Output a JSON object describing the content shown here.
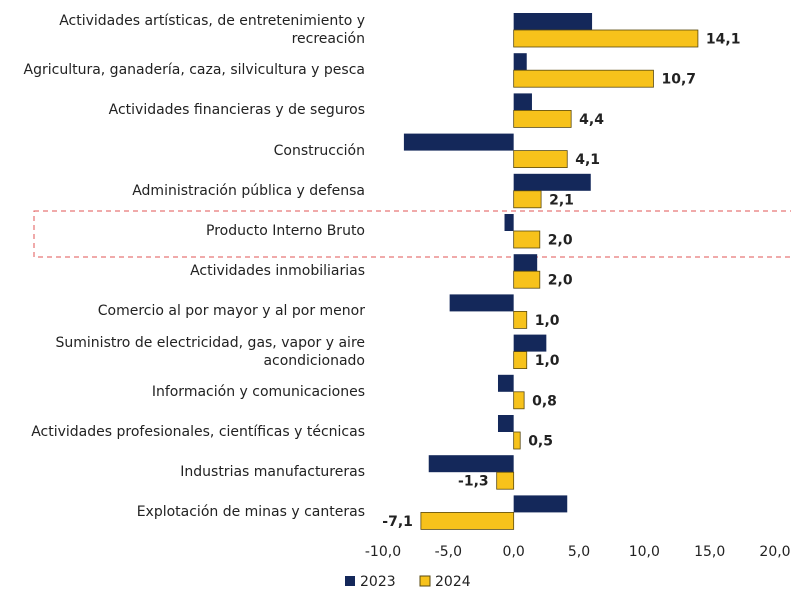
{
  "chart_data": {
    "type": "bar",
    "orientation": "horizontal",
    "categories": [
      "Actividades artísticas, de entretenimiento y recreación",
      "Agricultura, ganadería, caza, silvicultura y pesca",
      "Actividades financieras y de seguros",
      "Construcción",
      "Administración pública y defensa",
      "Producto Interno Bruto",
      "Actividades inmobiliarias",
      "Comercio al por mayor y al por menor",
      "Suministro de electricidad, gas, vapor y aire acondicionado",
      "Información y comunicaciones",
      "Actividades profesionales, científicas y técnicas",
      "Industrias manufactureras",
      "Explotación de minas y canteras"
    ],
    "series": [
      {
        "name": "2023",
        "color": "#14285a",
        "values": [
          6.0,
          1.0,
          1.4,
          -8.4,
          5.9,
          -0.7,
          1.8,
          -4.9,
          2.5,
          -1.2,
          -1.2,
          -6.5,
          4.1
        ]
      },
      {
        "name": "2024",
        "color": "#f7c21b",
        "values": [
          14.1,
          10.7,
          4.4,
          4.1,
          2.1,
          2.0,
          2.0,
          1.0,
          1.0,
          0.8,
          0.5,
          -1.3,
          -7.1
        ],
        "value_labels": [
          "14,1",
          "10,7",
          "4,4",
          "4,1",
          "2,1",
          "2,0",
          "2,0",
          "1,0",
          "1,0",
          "0,8",
          "0,5",
          "-1,3",
          "-7,1"
        ]
      }
    ],
    "xlim": [
      -10,
      20
    ],
    "xticks": [
      {
        "value": -10,
        "label": "-10,0"
      },
      {
        "value": -5,
        "label": "-5,0"
      },
      {
        "value": 0,
        "label": "0,0"
      },
      {
        "value": 5,
        "label": "5,0"
      },
      {
        "value": 10,
        "label": "10,0"
      },
      {
        "value": 15,
        "label": "15,0"
      },
      {
        "value": 20,
        "label": "20,0"
      }
    ],
    "legend": "bottom-left"
  }
}
